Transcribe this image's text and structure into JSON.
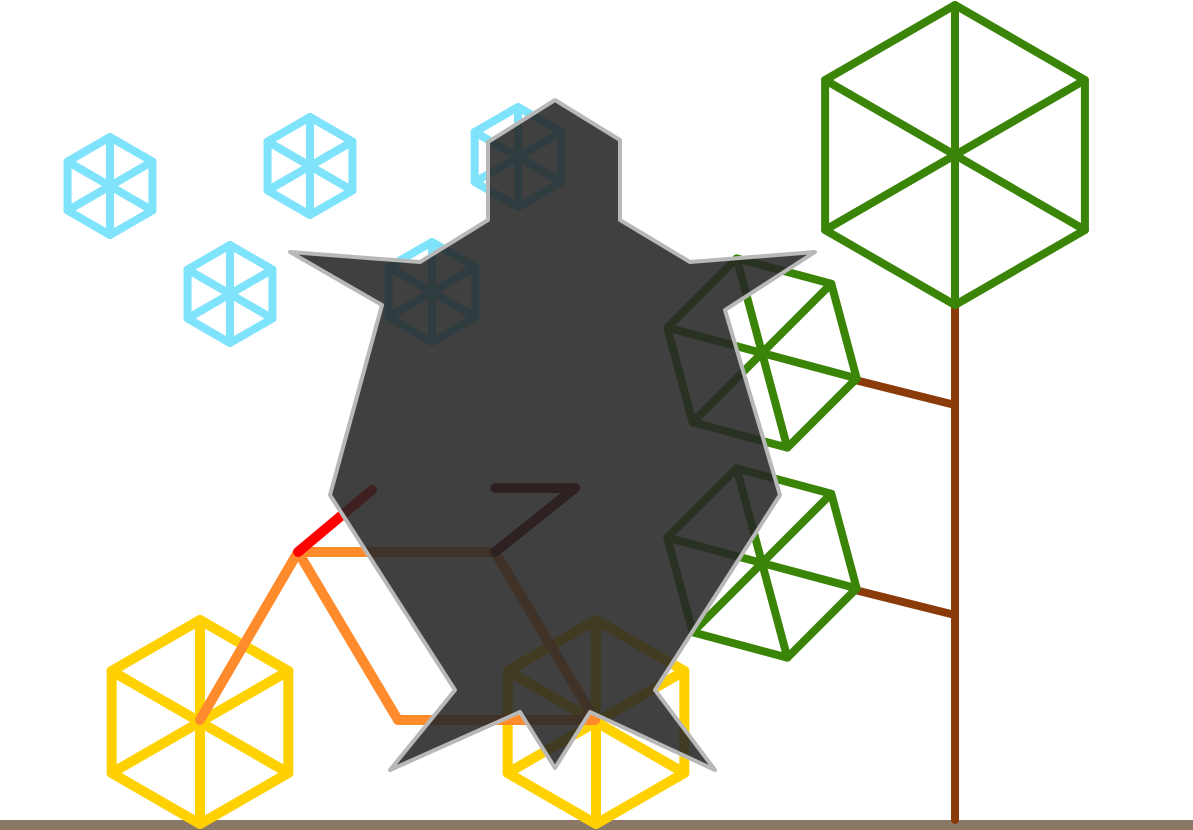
{
  "scene": {
    "background": "#ffffff",
    "colors": {
      "ground": "#8b7766",
      "snowflake": "#7ee3fb",
      "tree_leaf": "#3a8508",
      "tree_trunk": "#8b3b0a",
      "bike_frame": "#ff8b2d",
      "bike_wheel": "#ffd100",
      "bike_handlebar": "#ff0000",
      "bike_seat": "#660000",
      "figure_fill": "#262626",
      "figure_stroke": "#b8b8b8"
    },
    "elements": {
      "snowflakes": 5,
      "tree_leaves": 3,
      "bike_wheels": 2,
      "figure_count": 1
    }
  }
}
